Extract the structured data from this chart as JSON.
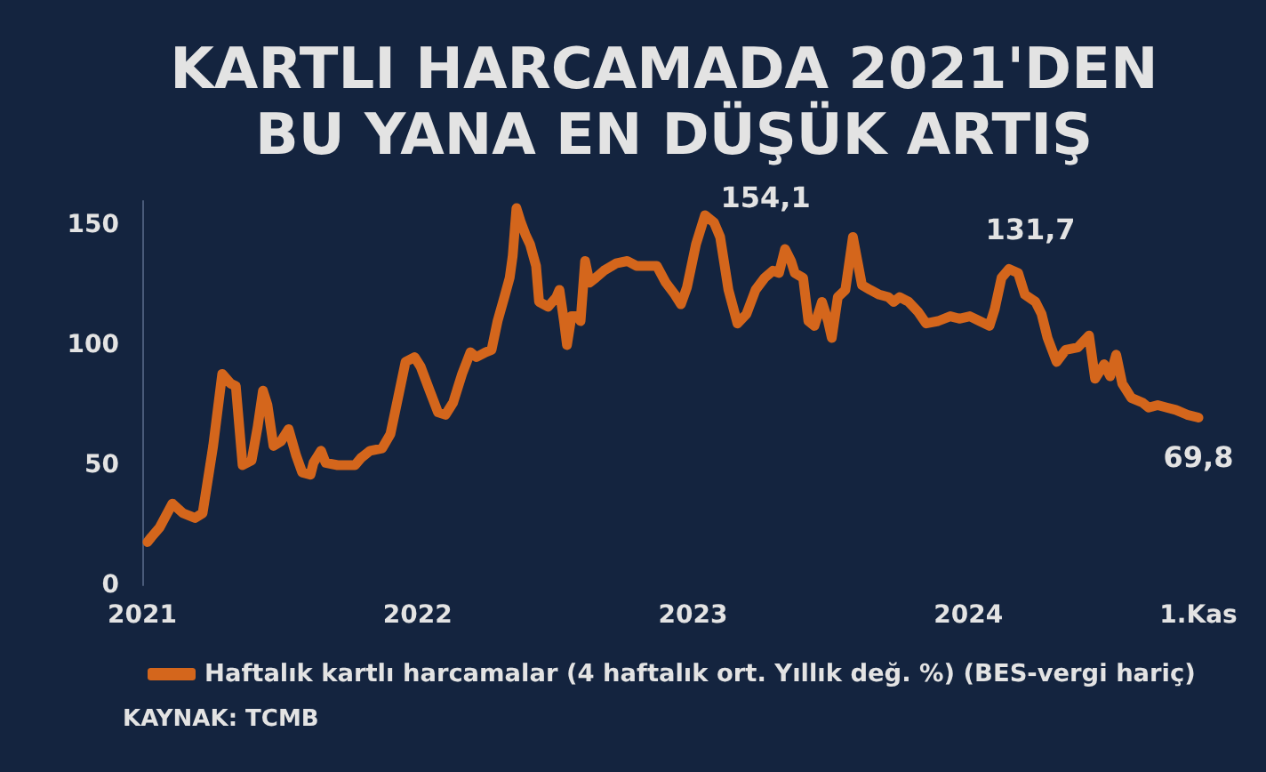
{
  "chart_data": {
    "type": "line",
    "title": "KARTLI HARCAMADA 2021'DEN BU YANA EN DÜŞÜK ARTIŞ",
    "x": [
      "2021-01-08",
      "2021-01-13",
      "2021-01-24",
      "2021-02-10",
      "2021-02-24",
      "2021-03-12",
      "2021-03-22",
      "2021-04-05",
      "2021-04-17",
      "2021-04-28",
      "2021-05-05",
      "2021-05-14",
      "2021-05-26",
      "2021-06-03",
      "2021-06-10",
      "2021-06-16",
      "2021-06-24",
      "2021-07-04",
      "2021-07-14",
      "2021-07-24",
      "2021-08-01",
      "2021-08-12",
      "2021-08-16",
      "2021-08-26",
      "2021-09-01",
      "2021-09-17",
      "2021-10-10",
      "2021-10-18",
      "2021-10-30",
      "2021-11-15",
      "2021-11-26",
      "2021-12-08",
      "2021-12-16",
      "2021-12-28",
      "2022-01-05",
      "2022-01-17",
      "2022-01-28",
      "2022-02-07",
      "2022-02-17",
      "2022-03-01",
      "2022-03-12",
      "2022-03-20",
      "2022-04-01",
      "2022-04-09",
      "2022-04-17",
      "2022-04-26",
      "2022-05-03",
      "2022-05-07",
      "2022-05-12",
      "2022-05-18",
      "2022-05-24",
      "2022-05-30",
      "2022-06-07",
      "2022-06-11",
      "2022-06-23",
      "2022-07-04",
      "2022-07-08",
      "2022-07-14",
      "2022-07-18",
      "2022-07-24",
      "2022-08-01",
      "2022-08-05",
      "2022-08-11",
      "2022-08-17",
      "2022-08-25",
      "2022-09-05",
      "2022-09-21",
      "2022-10-06",
      "2022-10-18",
      "2022-10-26",
      "2022-11-14",
      "2022-11-26",
      "2022-12-08",
      "2022-12-16",
      "2022-12-24",
      "2023-01-05",
      "2023-01-17",
      "2023-01-29",
      "2023-02-06",
      "2023-02-17",
      "2023-03-01",
      "2023-03-13",
      "2023-03-25",
      "2023-04-06",
      "2023-04-17",
      "2023-04-25",
      "2023-05-03",
      "2023-05-11",
      "2023-05-16",
      "2023-05-27",
      "2023-06-03",
      "2023-06-11",
      "2023-06-21",
      "2023-06-29",
      "2023-07-04",
      "2023-07-12",
      "2023-07-22",
      "2023-08-01",
      "2023-08-07",
      "2023-08-13",
      "2023-08-24",
      "2023-09-05",
      "2023-09-17",
      "2023-09-24",
      "2023-10-02",
      "2023-10-14",
      "2023-10-26",
      "2023-11-06",
      "2023-11-22",
      "2023-12-08",
      "2023-12-20",
      "2024-01-03",
      "2024-01-16",
      "2024-01-29",
      "2024-02-05",
      "2024-02-14",
      "2024-02-24",
      "2024-03-07",
      "2024-03-16",
      "2024-03-30",
      "2024-04-07",
      "2024-04-15",
      "2024-04-27",
      "2024-05-09",
      "2024-05-25",
      "2024-06-09",
      "2024-06-17",
      "2024-06-29",
      "2024-07-07",
      "2024-07-15",
      "2024-07-23",
      "2024-08-04",
      "2024-08-19",
      "2024-08-27",
      "2024-09-08",
      "2024-09-20",
      "2024-10-02",
      "2024-10-17",
      "2024-11-01"
    ],
    "series": [
      {
        "name": "Haftalık kartlı harcamalar (4 haftalık ort. Yıllık değ. %) (BES-vergi hariç)",
        "color": "#d4661c",
        "values": [
          18,
          20,
          24,
          34,
          30,
          28,
          30,
          58,
          88,
          84,
          83,
          50,
          52,
          66,
          81,
          75,
          58,
          60,
          65,
          54,
          47,
          46,
          51,
          56,
          51,
          50,
          50,
          53,
          56,
          57,
          63,
          81,
          93,
          95,
          91,
          81,
          72,
          71,
          76,
          88,
          97,
          95,
          97,
          98,
          110,
          120,
          128,
          137,
          157,
          151,
          146,
          142,
          133,
          118,
          116,
          120,
          123,
          110,
          100,
          112,
          112,
          110,
          135,
          126,
          128,
          131,
          134,
          135,
          133,
          133,
          133,
          126,
          121,
          117,
          124,
          142,
          154.1,
          151,
          145,
          123,
          109,
          113,
          123,
          128,
          131,
          130,
          140,
          135,
          130,
          128,
          110,
          108,
          118,
          110,
          103,
          120,
          123,
          145,
          135,
          125,
          123,
          121,
          120,
          118,
          120,
          118,
          114,
          109,
          110,
          112,
          111,
          112,
          110,
          108,
          115,
          128,
          131.7,
          130,
          121,
          118,
          113,
          103,
          93,
          98,
          99,
          104,
          86,
          92,
          87,
          96,
          84,
          78,
          76,
          74,
          75,
          74,
          73,
          71,
          69.8
        ]
      }
    ],
    "xlim": [
      "2021-01-01",
      "2024-11-01"
    ],
    "xticks": [
      {
        "value": "2021-01-01",
        "label": "2021"
      },
      {
        "value": "2022-01-01",
        "label": "2022"
      },
      {
        "value": "2023-01-01",
        "label": "2023"
      },
      {
        "value": "2024-01-01",
        "label": "2024"
      },
      {
        "value": "2024-11-01",
        "label": "1.Kas"
      }
    ],
    "ylim": [
      0,
      160
    ],
    "yticks": [
      0,
      50,
      100,
      150
    ],
    "legend": "bottom",
    "annotations": [
      {
        "text": "154,1",
        "x": "2023-01-17",
        "y": 154.1
      },
      {
        "text": "131,7",
        "x": "2024-02-24",
        "y": 131.7
      },
      {
        "text": "69,8",
        "x": "2024-11-01",
        "y": 69.8
      },
      "KAYNAK: TCMB"
    ]
  }
}
